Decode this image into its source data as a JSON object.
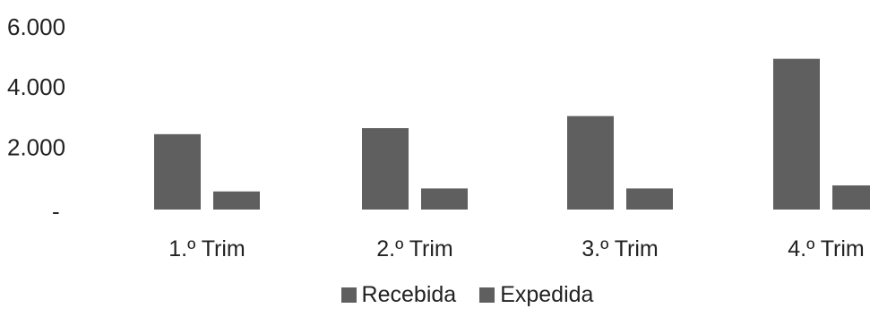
{
  "chart_data": {
    "type": "bar",
    "title": "",
    "xlabel": "",
    "ylabel": "",
    "categories": [
      "1.º Trim",
      "2.º Trim",
      "3.º Trim",
      "4.º Trim"
    ],
    "series": [
      {
        "name": "Recebida",
        "values": [
          2500,
          2700,
          3100,
          5000
        ],
        "color": "#5f5f5f"
      },
      {
        "name": "Expedida",
        "values": [
          600,
          700,
          700,
          800
        ],
        "color": "#5f5f5f"
      }
    ],
    "yticks": [
      {
        "value": 0,
        "label": "-"
      },
      {
        "value": 2000,
        "label": "2.000"
      },
      {
        "value": 4000,
        "label": "4.000"
      },
      {
        "value": 6000,
        "label": "6.000"
      }
    ],
    "ylim": [
      0,
      6000
    ],
    "grid": false,
    "legend_position": "bottom"
  }
}
